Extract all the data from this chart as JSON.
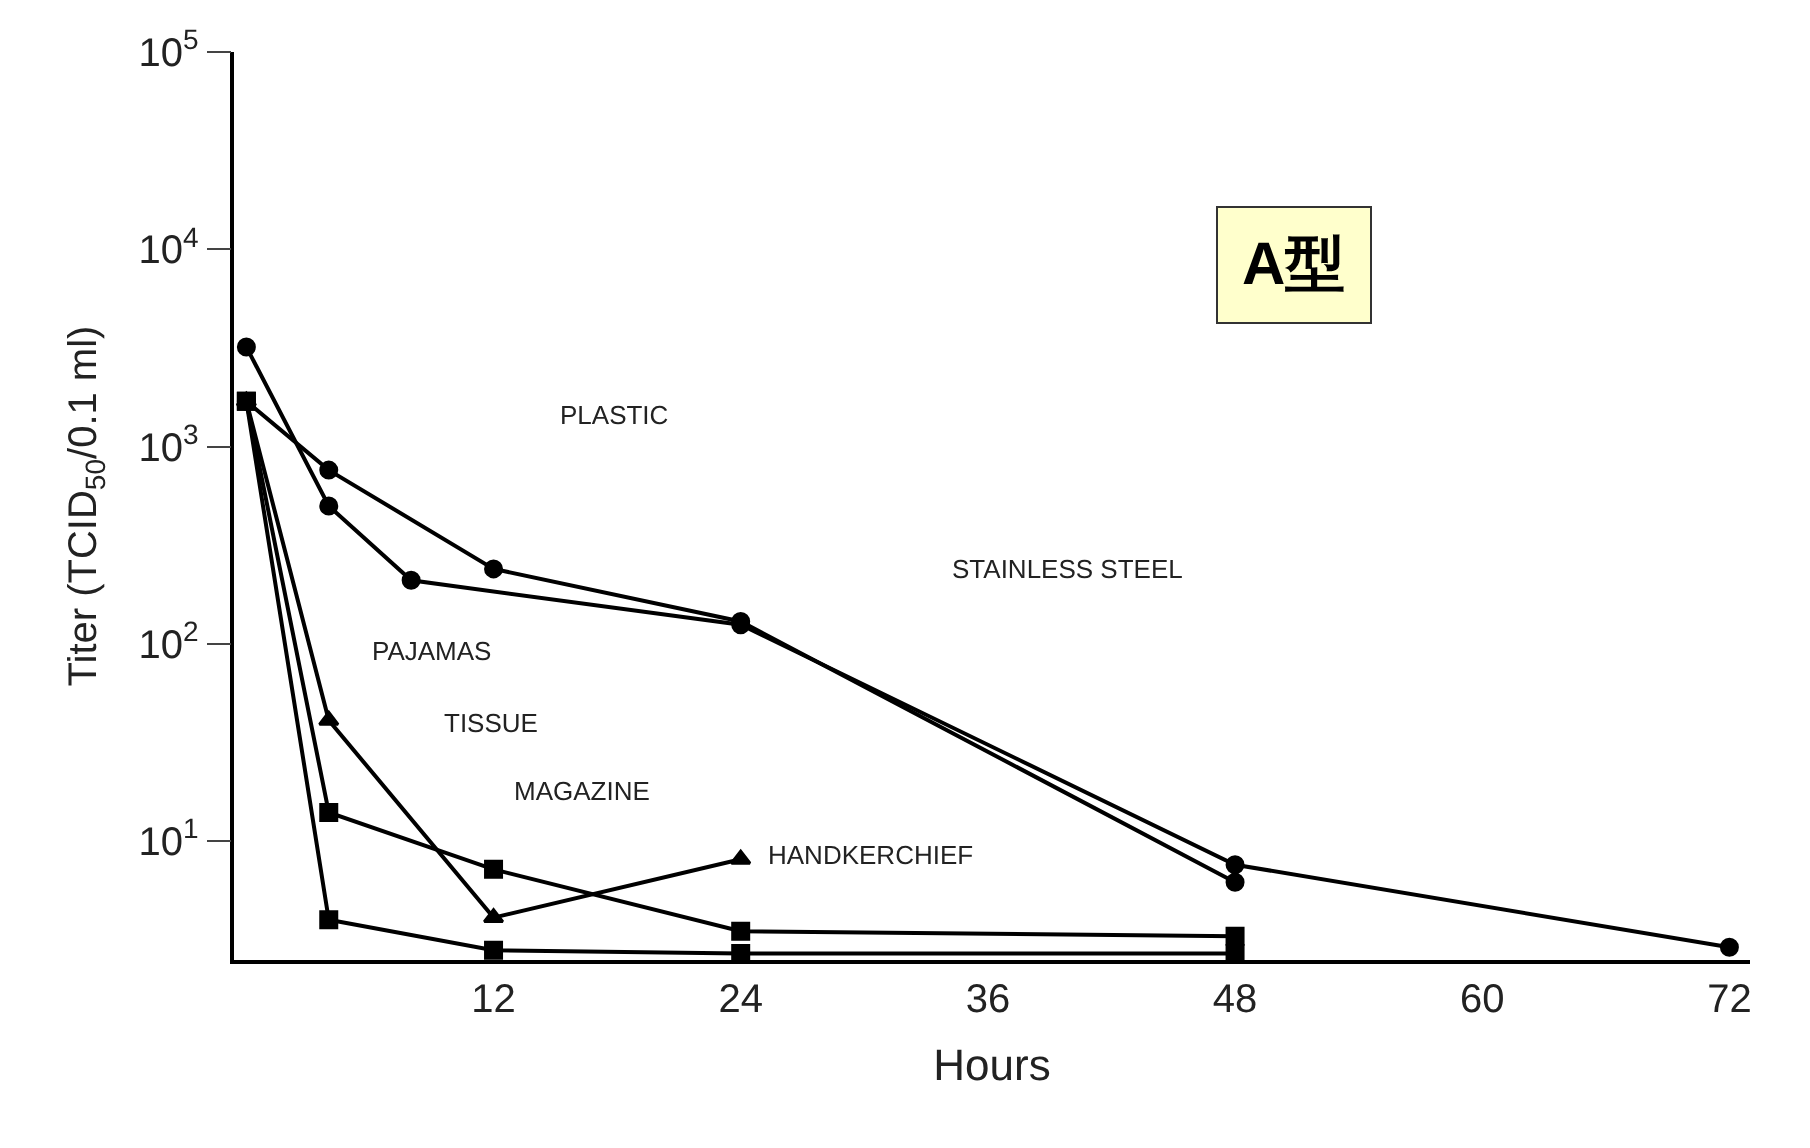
{
  "chart_data": {
    "type": "line",
    "xlabel": "Hours",
    "ylabel": "Titer (TCID$_{50}$/0.1 ml)",
    "xlim": [
      -0.6,
      73
    ],
    "xticks": [
      12,
      24,
      36,
      48,
      60,
      72
    ],
    "ylim": [
      2.5,
      100000
    ],
    "log": "y",
    "yticks": [
      {
        "value": 10,
        "label": "10$^{1}$"
      },
      {
        "value": 100,
        "label": "10$^{2}$"
      },
      {
        "value": 1000,
        "label": "10$^{3}$"
      },
      {
        "value": 10000,
        "label": "10$^{4}$"
      },
      {
        "value": 100000,
        "label": "10$^{5}$"
      }
    ],
    "line_style": "solid",
    "series": [
      {
        "color": "#000000",
        "marker": "circle",
        "x": [
          0,
          4,
          12,
          24,
          48
        ],
        "values": [
          1700,
          760,
          240,
          130,
          6.2
        ]
      },
      {
        "color": "#000000",
        "marker": "circle",
        "x": [
          0,
          4,
          8,
          24,
          48,
          72
        ],
        "values": [
          3200,
          500,
          210,
          125,
          7.6,
          2.9
        ]
      },
      {
        "color": "#000000",
        "marker": "square",
        "x": [
          0,
          4,
          12,
          24,
          48
        ],
        "values": [
          1700,
          14,
          7.2,
          3.5,
          3.3
        ]
      },
      {
        "color": "#000000",
        "marker": "square",
        "x": [
          0,
          4,
          12,
          24,
          48
        ],
        "values": [
          1700,
          4.0,
          2.8,
          2.7,
          2.7
        ]
      },
      {
        "color": "#000000",
        "marker": "triangle",
        "x": [
          0,
          4,
          12,
          24
        ],
        "values": [
          1700,
          41,
          4.1,
          8.1
        ]
      }
    ],
    "annotations": [
      "PLASTIC",
      "STAINLESS STEEL",
      "PAJAMAS",
      "TISSUE",
      "MAGAZINE",
      "HANDKERCHIEF",
      "A型"
    ]
  }
}
